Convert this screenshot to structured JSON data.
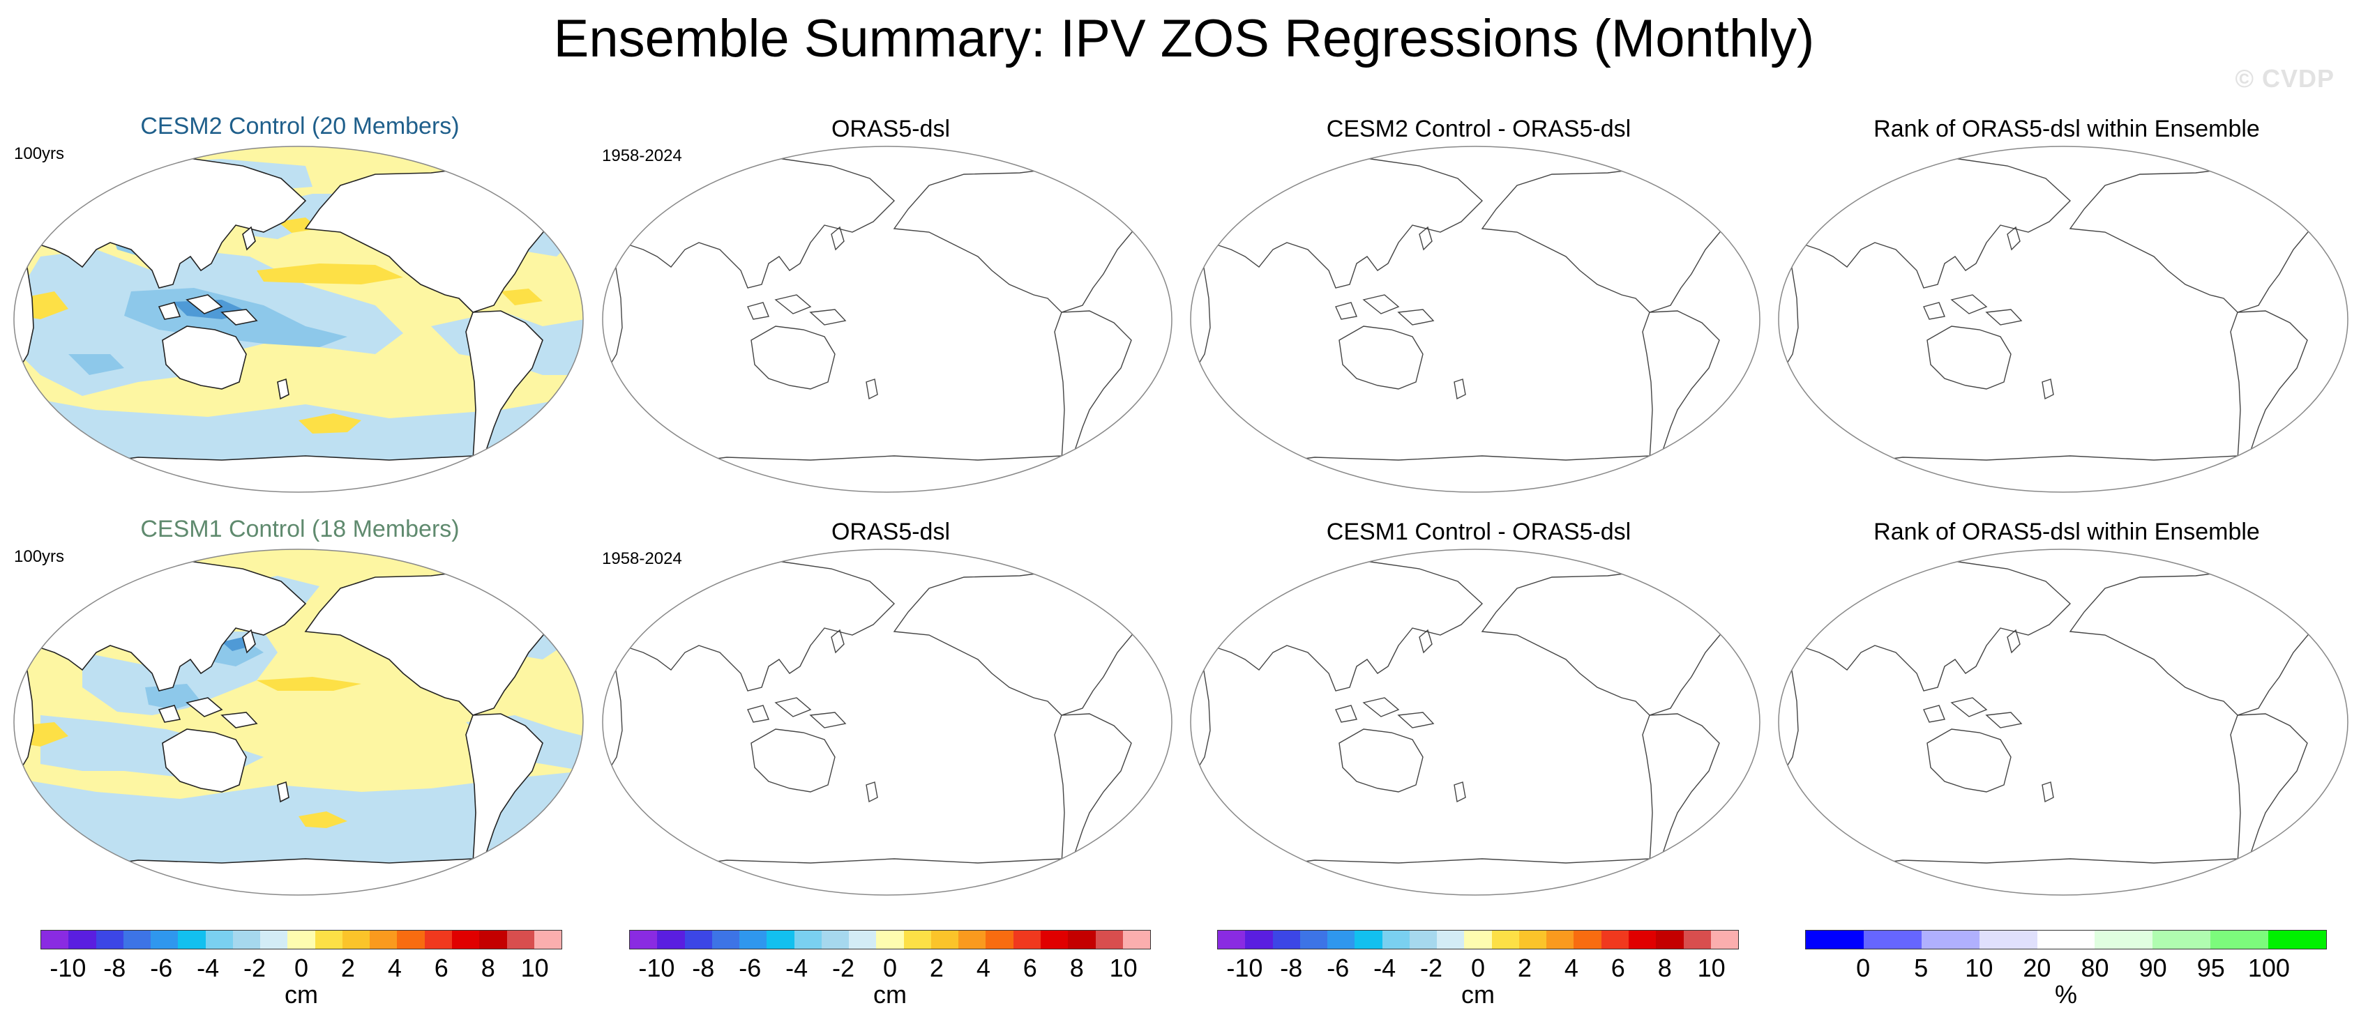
{
  "figure": {
    "title": "Ensemble Summary: IPV ZOS Regressions (Monthly)",
    "watermark": "© CVDP"
  },
  "rows": [
    {
      "model_title": "CESM2 Control (20 Members)",
      "model_title_color": "#1f5f8b",
      "model_period": "100yrs",
      "obs_title": "ORAS5-dsl",
      "obs_period": "1958-2024",
      "diff_title": "CESM2 Control - ORAS5-dsl",
      "rank_title": "Rank of ORAS5-dsl within Ensemble"
    },
    {
      "model_title": "CESM1 Control (18 Members)",
      "model_title_color": "#5f8a6e",
      "model_period": "100yrs",
      "obs_title": "ORAS5-dsl",
      "obs_period": "1958-2024",
      "diff_title": "CESM1 Control - ORAS5-dsl",
      "rank_title": "Rank of ORAS5-dsl within Ensemble"
    }
  ],
  "colorbars": {
    "cm": {
      "ticks": [
        "-10",
        "-8",
        "-6",
        "-4",
        "-2",
        "0",
        "2",
        "4",
        "6",
        "8",
        "10"
      ],
      "unit": "cm",
      "colors": [
        "#8a2be2",
        "#5a1ee0",
        "#3c46e6",
        "#3d74e6",
        "#2f97ee",
        "#12c0ef",
        "#7ad0f0",
        "#a6d8ee",
        "#d3ecf6",
        "#fefdb0",
        "#fde046",
        "#fbc42a",
        "#fa9a1e",
        "#f86c10",
        "#f0391e",
        "#e00000",
        "#c40000",
        "#d84e4e",
        "#fbaeae"
      ]
    },
    "percent": {
      "ticks": [
        "0",
        "5",
        "10",
        "20",
        "80",
        "90",
        "95",
        "100"
      ],
      "unit": "%",
      "colors": [
        "#0000ff",
        "#6666ff",
        "#b0b0fe",
        "#e0e0fc",
        "#ffffff",
        "#e0ffe0",
        "#b0fdb0",
        "#7cfb7c",
        "#00f000"
      ]
    }
  },
  "map_colors": {
    "ocean_positive": "#fdf6a2",
    "ocean_negative": "#bee0f2",
    "strong_negative": "#8dc8ea",
    "stronger_negative": "#4f9ad6",
    "strong_positive": "#fde046",
    "land": "#ffffff",
    "coast": "#222222"
  }
}
